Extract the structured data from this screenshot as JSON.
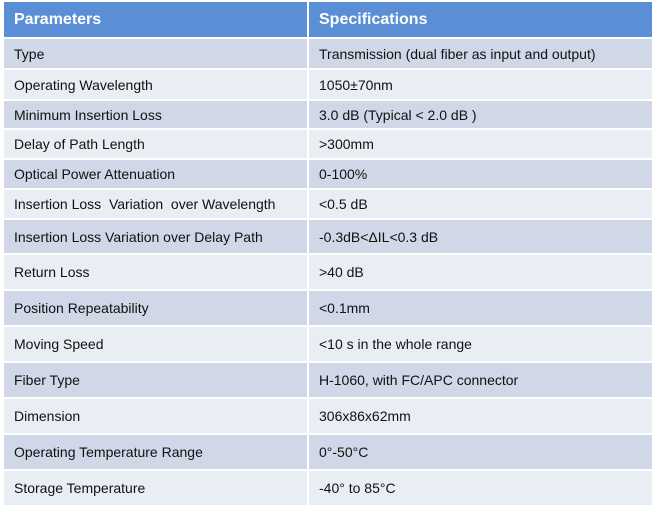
{
  "header": {
    "col1": "Parameters",
    "col2": "Specifications"
  },
  "colors": {
    "header": "#5a8fd6",
    "row_dark": "#d0d8e8",
    "row_light": "#e9edf4"
  },
  "rows": [
    {
      "param": "Type",
      "spec": "Transmission (dual fiber as input and output)"
    },
    {
      "param": "Operating Wavelength",
      "spec": "1050±70nm"
    },
    {
      "param": "Minimum Insertion Loss",
      "spec": "3.0 dB (Typical < 2.0 dB )"
    },
    {
      "param": "Delay of Path Length",
      "spec": ">300mm"
    },
    {
      "param": "Optical Power Attenuation",
      "spec": "0-100%"
    },
    {
      "param": "Insertion Loss  Variation  over Wavelength",
      "spec": "<0.5 dB"
    },
    {
      "param": "Insertion Loss Variation over Delay Path",
      "spec": "-0.3dB<ΔIL<0.3 dB"
    },
    {
      "param": "Return Loss",
      "spec": ">40 dB"
    },
    {
      "param": "Position Repeatability",
      "spec": "<0.1mm"
    },
    {
      "param": "Moving Speed",
      "spec": "<10 s in the whole range"
    },
    {
      "param": "Fiber Type",
      "spec": "H-1060, with FC/APC connector"
    },
    {
      "param": "Dimension",
      "spec": "306x86x62mm"
    },
    {
      "param": "Operating Temperature Range",
      "spec": "0°-50°C"
    },
    {
      "param": "Storage Temperature",
      "spec": "-40° to 85°C"
    }
  ]
}
